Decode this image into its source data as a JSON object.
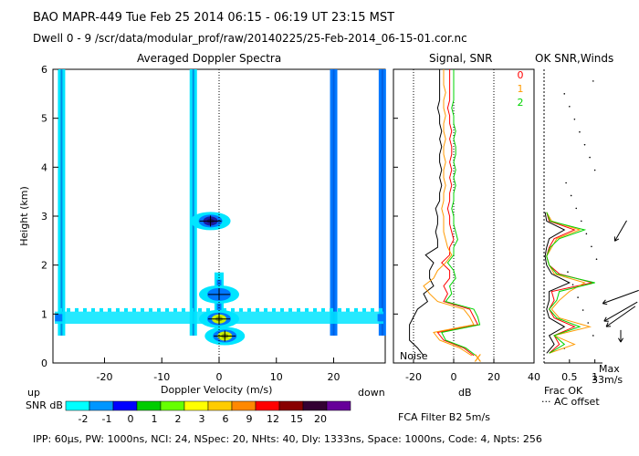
{
  "header": {
    "line1": "BAO  MAPR-449  Tue Feb 25 2014 06:15 - 06:19 UT 23:15 MST",
    "line2": "Dwell  0 - 9   /scr/data/modular_prof/raw/20140225/25-Feb-2014_06-15-01.cor.nc"
  },
  "footer": {
    "params": "IPP: 60µs,  PW: 1000ns,  NCI: 24,  NSpec: 20,  NHts: 40,  Dly: 1333ns,  Space: 1000ns,  Code: 4,  Npts: 256"
  },
  "colors": {
    "cyan": "#00e5ff",
    "blue1": "#0078ff",
    "navy": "#1a1aa0",
    "green": "#00d400",
    "black": "#000000",
    "orange": "#ff9a00",
    "red": "#ff0000",
    "yellow_green": "#c8f000"
  },
  "chart_data": [
    {
      "type": "heatmap",
      "title": "Averaged Doppler Spectra",
      "xlabel": "Doppler Velocity (m/s)",
      "ylabel": "Height (km)",
      "xlim": [
        -29,
        29
      ],
      "ylim": [
        0,
        6
      ],
      "xticks": [
        -20,
        -10,
        0,
        10,
        20
      ],
      "yticks": [
        0,
        1,
        2,
        3,
        4,
        5,
        6
      ],
      "left_label": "up",
      "right_label": "down",
      "features": [
        {
          "kind": "stripe",
          "v": -27.5,
          "color": "#00e5ff"
        },
        {
          "kind": "stripe",
          "v": -4.5,
          "color": "#00e5ff"
        },
        {
          "kind": "stripe",
          "v": 20,
          "color": "#0078ff"
        },
        {
          "kind": "stripe",
          "v": 28.5,
          "color": "#0078ff"
        },
        {
          "kind": "blob",
          "v": -1.5,
          "h": 2.9,
          "color": "#1a1aa0"
        },
        {
          "kind": "blob",
          "v": 0,
          "h": 1.4,
          "color": "#0078ff"
        },
        {
          "kind": "blob",
          "v": 0,
          "h": 0.9,
          "color": "#c8f000"
        },
        {
          "kind": "blob",
          "v": 1,
          "h": 0.55,
          "color": "#c8f000"
        }
      ],
      "colorbar": {
        "label": "SNR dB",
        "ticks": [
          "-2",
          "-1",
          "0",
          "1",
          "2",
          "3",
          "6",
          "9",
          "12",
          "15",
          "20"
        ],
        "colors": [
          "#00ffff",
          "#0096ff",
          "#0000ff",
          "#00cc00",
          "#66ff00",
          "#ffff00",
          "#ffcc00",
          "#ff8800",
          "#ff0000",
          "#880000",
          "#330033",
          "#660099"
        ]
      }
    },
    {
      "type": "line",
      "title": "Signal, SNR",
      "xlabel": "dB",
      "xlim": [
        -30,
        40
      ],
      "ylim": [
        0,
        6
      ],
      "xticks": [
        -20,
        0,
        20,
        40
      ],
      "noise_label": "Noise",
      "series": [
        {
          "name": "noise",
          "color": "#000000",
          "v": [
            -15,
            -18,
            -22,
            -22,
            -22,
            -20,
            -18,
            -13,
            -15,
            -10,
            -12,
            -12,
            -10,
            -14,
            -8,
            -8,
            -9,
            -8,
            -8,
            -9,
            -7,
            -7,
            -6,
            -7,
            -6,
            -7,
            -7,
            -6,
            -7,
            -6,
            -7,
            -7,
            -8,
            -7,
            -7,
            -7,
            -7,
            -7
          ]
        },
        {
          "name": "0",
          "color": "#ff0000",
          "v": [
            10,
            5,
            -5,
            -8,
            12,
            10,
            8,
            -5,
            -3,
            -5,
            -2,
            -2,
            -6,
            -2,
            -2,
            0,
            -1,
            -2,
            -2,
            -3,
            -2,
            -2,
            -1,
            -2,
            -1,
            -2,
            -1,
            -1,
            -2,
            -1,
            -2,
            -2,
            -3,
            -2,
            -2,
            -2,
            -2,
            -2
          ]
        },
        {
          "name": "1",
          "color": "#ff9a00",
          "v": [
            9,
            3,
            -7,
            -10,
            10,
            8,
            5,
            -8,
            -12,
            -15,
            -10,
            -8,
            -4,
            -1,
            -3,
            -4,
            -5,
            -5,
            -5,
            -6,
            -5,
            -5,
            -4,
            -5,
            -5,
            -4,
            -5,
            -5,
            -4,
            -5,
            -5,
            -4,
            -5,
            -5,
            -4,
            -5,
            -5,
            -5
          ]
        },
        {
          "name": "2",
          "color": "#00d400",
          "v": [
            11,
            6,
            -4,
            -6,
            13,
            12,
            10,
            -4,
            -1,
            -2,
            1,
            0,
            -3,
            0,
            0,
            2,
            1,
            0,
            0,
            -1,
            0,
            0,
            1,
            0,
            1,
            0,
            1,
            1,
            0,
            1,
            0,
            0,
            -1,
            0,
            0,
            0,
            0,
            0
          ]
        }
      ],
      "markers": [
        {
          "label": "x",
          "v": 12,
          "h": 0.1,
          "color": "#ff9a00"
        }
      ]
    },
    {
      "type": "line",
      "title": "OK SNR,Winds",
      "xlabel": "Frac OK",
      "xlim": [
        0,
        1.15
      ],
      "ylim": [
        0,
        6
      ],
      "xticks": [
        0.5,
        1
      ],
      "tick_labels": [
        "0.5",
        "1"
      ],
      "legend": [
        {
          "name": "0",
          "color": "#ff0000"
        },
        {
          "name": "1",
          "color": "#ff9a00"
        },
        {
          "name": "2",
          "color": "#00d400"
        }
      ],
      "wind_scale": {
        "max_label": "Max",
        "speed": "33m/s"
      },
      "ac_offset_label": "AC offset",
      "winds": [
        {
          "h": 2.7,
          "speed": 10,
          "dir": 210
        },
        {
          "h": 1.35,
          "speed": 20,
          "dir": 250
        },
        {
          "h": 1.05,
          "speed": 20,
          "dir": 240
        },
        {
          "h": 0.95,
          "speed": 18,
          "dir": 235
        },
        {
          "h": 0.55,
          "speed": 2,
          "dir": 180
        }
      ]
    }
  ],
  "extras": {
    "fca_label": "FCA Filter B2  5m/s"
  }
}
